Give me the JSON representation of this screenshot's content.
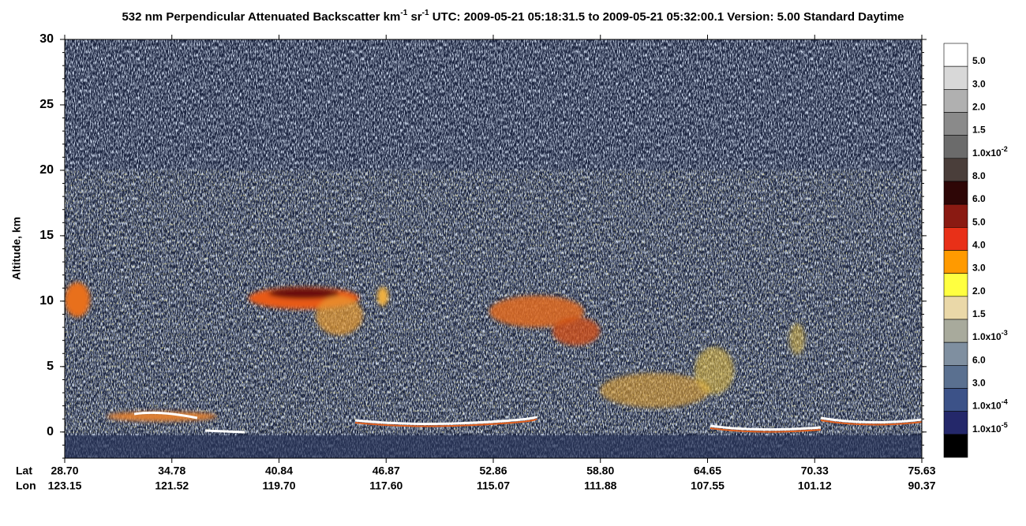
{
  "chart_data": {
    "type": "heatmap",
    "title_parts": [
      "532 nm Perpendicular Attenuated Backscatter km",
      "-1",
      " sr",
      "-1",
      "  UTC: 2009-05-21 05:18:31.5 to 2009-05-21 05:32:00.1  Version: 5.00 Standard Daytime"
    ],
    "ylabel": "Altitude, km",
    "ylim": [
      -2,
      30
    ],
    "yticks": [
      0,
      5,
      10,
      15,
      20,
      25,
      30
    ],
    "x_row_labels": [
      "Lat",
      "Lon"
    ],
    "lat": [
      "28.70",
      "34.78",
      "40.84",
      "46.87",
      "52.86",
      "58.80",
      "64.65",
      "70.33",
      "75.63"
    ],
    "lon": [
      "123.15",
      "121.52",
      "119.70",
      "117.60",
      "115.07",
      "111.88",
      "107.55",
      "101.12",
      "90.37"
    ],
    "colorbar": {
      "colors": [
        "#ffffff",
        "#d8d8d8",
        "#b0b0b0",
        "#8a8a8a",
        "#6b6b6b",
        "#4a3e3a",
        "#2e0606",
        "#8a1a12",
        "#e83018",
        "#ff9a00",
        "#ffff40",
        "#ead8a8",
        "#a8aa9c",
        "#7f8fa0",
        "#5a7090",
        "#3c5288",
        "#24286a",
        "#000000"
      ],
      "labels": [
        {
          "text": "5.0"
        },
        {
          "text": "3.0"
        },
        {
          "text": "2.0"
        },
        {
          "text": "1.5"
        },
        {
          "text": "1.0x10",
          "sup": "-2"
        },
        {
          "text": "8.0"
        },
        {
          "text": "6.0"
        },
        {
          "text": "5.0"
        },
        {
          "text": "4.0"
        },
        {
          "text": "3.0"
        },
        {
          "text": "2.0"
        },
        {
          "text": "1.5"
        },
        {
          "text": "1.0x10",
          "sup": "-3"
        },
        {
          "text": "6.0"
        },
        {
          "text": "3.0"
        },
        {
          "text": "1.0x10",
          "sup": "-4"
        },
        {
          "text": "1.0x10",
          "sup": "-5"
        }
      ]
    }
  }
}
